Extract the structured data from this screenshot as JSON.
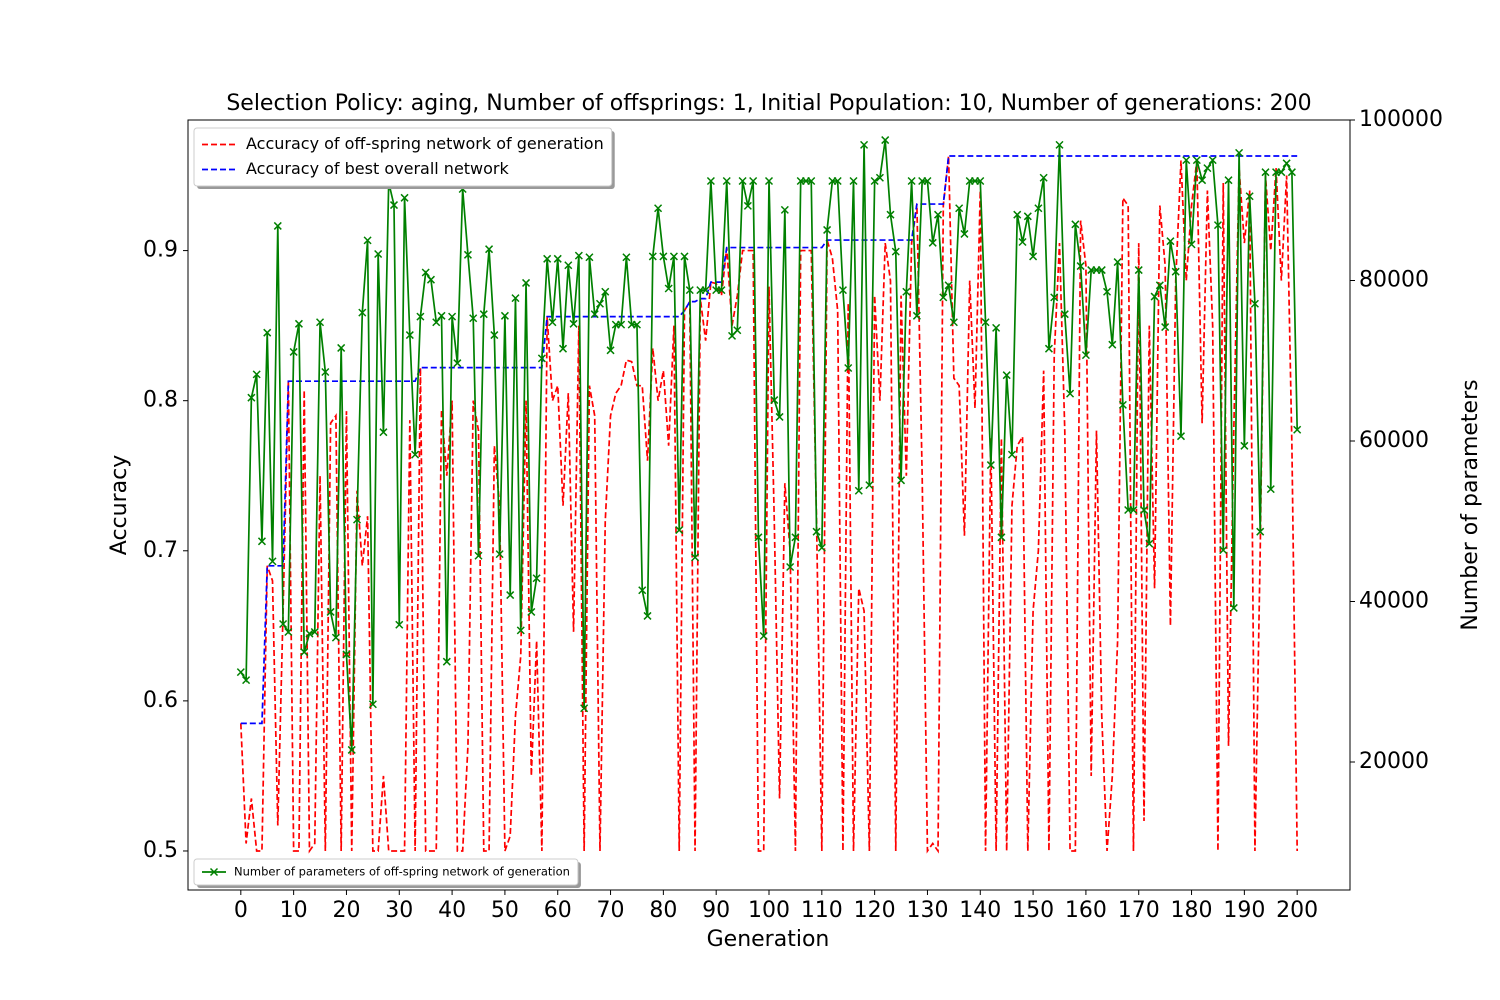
{
  "chart_data": {
    "type": "line",
    "title": "Selection Policy: aging, Number of offsprings: 1, Initial Population: 10, Number of generations: 200",
    "xlabel": "Generation",
    "ylabel": "Accuracy",
    "y2label": "Number of parameters",
    "xlim": [
      -10,
      210
    ],
    "ylim": [
      0.474,
      0.987
    ],
    "y2lim": [
      4050,
      100000
    ],
    "xticks": [
      0,
      10,
      20,
      30,
      40,
      50,
      60,
      70,
      80,
      90,
      100,
      110,
      120,
      130,
      140,
      150,
      160,
      170,
      180,
      190,
      200
    ],
    "yticks": [
      0.5,
      0.6,
      0.7,
      0.8,
      0.9
    ],
    "y2ticks": [
      20000,
      40000,
      60000,
      80000,
      100000
    ],
    "legend": "upper left",
    "legend2": "lower left",
    "grid": false,
    "x": [
      0,
      1,
      2,
      3,
      4,
      5,
      6,
      7,
      8,
      9,
      10,
      11,
      12,
      13,
      14,
      15,
      16,
      17,
      18,
      19,
      20,
      21,
      22,
      23,
      24,
      25,
      26,
      27,
      28,
      29,
      30,
      31,
      32,
      33,
      34,
      35,
      36,
      37,
      38,
      39,
      40,
      41,
      42,
      43,
      44,
      45,
      46,
      47,
      48,
      49,
      50,
      51,
      52,
      53,
      54,
      55,
      56,
      57,
      58,
      59,
      60,
      61,
      62,
      63,
      64,
      65,
      66,
      67,
      68,
      69,
      70,
      71,
      72,
      73,
      74,
      75,
      76,
      77,
      78,
      79,
      80,
      81,
      82,
      83,
      84,
      85,
      86,
      87,
      88,
      89,
      90,
      91,
      92,
      93,
      94,
      95,
      96,
      97,
      98,
      99,
      100,
      101,
      102,
      103,
      104,
      105,
      106,
      107,
      108,
      109,
      110,
      111,
      112,
      113,
      114,
      115,
      116,
      117,
      118,
      119,
      120,
      121,
      122,
      123,
      124,
      125,
      126,
      127,
      128,
      129,
      130,
      131,
      132,
      133,
      134,
      135,
      136,
      137,
      138,
      139,
      140,
      141,
      142,
      143,
      144,
      145,
      146,
      147,
      148,
      149,
      150,
      151,
      152,
      153,
      154,
      155,
      156,
      157,
      158,
      159,
      160,
      161,
      162,
      163,
      164,
      165,
      166,
      167,
      168,
      169,
      170,
      171,
      172,
      173,
      174,
      175,
      176,
      177,
      178,
      179,
      180,
      181,
      182,
      183,
      184,
      185,
      186,
      187,
      188,
      189,
      190,
      191,
      192,
      193,
      194,
      195,
      196,
      197,
      198,
      199,
      200
    ],
    "series": [
      {
        "name": "Accuracy of off-spring network of generation",
        "color": "#ff0000",
        "linestyle": "dashed",
        "axis": "y",
        "values": [
          0.585,
          0.505,
          0.535,
          0.5,
          0.5,
          0.69,
          0.68,
          0.517,
          0.66,
          0.813,
          0.5,
          0.5,
          0.807,
          0.5,
          0.505,
          0.75,
          0.5,
          0.785,
          0.79,
          0.5,
          0.793,
          0.5,
          0.74,
          0.69,
          0.723,
          0.5,
          0.5,
          0.55,
          0.5,
          0.5,
          0.5,
          0.5,
          0.787,
          0.5,
          0.822,
          0.5,
          0.5,
          0.5,
          0.794,
          0.75,
          0.8,
          0.5,
          0.5,
          0.57,
          0.8,
          0.78,
          0.5,
          0.5,
          0.77,
          0.73,
          0.5,
          0.51,
          0.59,
          0.63,
          0.8,
          0.55,
          0.64,
          0.5,
          0.856,
          0.8,
          0.81,
          0.73,
          0.805,
          0.646,
          0.85,
          0.5,
          0.81,
          0.79,
          0.5,
          0.72,
          0.79,
          0.805,
          0.81,
          0.827,
          0.826,
          0.81,
          0.81,
          0.76,
          0.835,
          0.8,
          0.82,
          0.77,
          0.85,
          0.5,
          0.86,
          0.866,
          0.5,
          0.868,
          0.84,
          0.879,
          0.878,
          0.87,
          0.902,
          0.85,
          0.87,
          0.9,
          0.9,
          0.9,
          0.5,
          0.5,
          0.876,
          0.72,
          0.535,
          0.745,
          0.7,
          0.5,
          0.9,
          0.9,
          0.9,
          0.72,
          0.5,
          0.907,
          0.895,
          0.86,
          0.5,
          0.865,
          0.5,
          0.675,
          0.66,
          0.5,
          0.87,
          0.8,
          0.905,
          0.88,
          0.5,
          0.87,
          0.75,
          0.905,
          0.931,
          0.75,
          0.5,
          0.505,
          0.5,
          0.93,
          0.963,
          0.815,
          0.81,
          0.71,
          0.88,
          0.795,
          0.94,
          0.5,
          0.775,
          0.5,
          0.775,
          0.5,
          0.73,
          0.77,
          0.776,
          0.5,
          0.66,
          0.7,
          0.82,
          0.5,
          0.83,
          0.905,
          0.78,
          0.5,
          0.5,
          0.92,
          0.89,
          0.55,
          0.78,
          0.59,
          0.5,
          0.55,
          0.64,
          0.935,
          0.93,
          0.5,
          0.905,
          0.52,
          0.85,
          0.675,
          0.93,
          0.89,
          0.65,
          0.88,
          0.96,
          0.88,
          0.93,
          0.96,
          0.785,
          0.94,
          0.85,
          0.5,
          0.945,
          0.57,
          0.78,
          0.955,
          0.905,
          0.94,
          0.5,
          0.7,
          0.95,
          0.9,
          0.955,
          0.88,
          0.95,
          0.77,
          0.5
        ]
      },
      {
        "name": "Accuracy of best overall network",
        "color": "#0000ff",
        "linestyle": "dashed",
        "axis": "y",
        "values": [
          0.585,
          0.585,
          0.585,
          0.585,
          0.585,
          0.69,
          0.69,
          0.69,
          0.69,
          0.813,
          0.813,
          0.813,
          0.813,
          0.813,
          0.813,
          0.813,
          0.813,
          0.813,
          0.813,
          0.813,
          0.813,
          0.813,
          0.813,
          0.813,
          0.813,
          0.813,
          0.813,
          0.813,
          0.813,
          0.813,
          0.813,
          0.813,
          0.813,
          0.813,
          0.822,
          0.822,
          0.822,
          0.822,
          0.822,
          0.822,
          0.822,
          0.822,
          0.822,
          0.822,
          0.822,
          0.822,
          0.822,
          0.822,
          0.822,
          0.822,
          0.822,
          0.822,
          0.822,
          0.822,
          0.822,
          0.822,
          0.822,
          0.822,
          0.856,
          0.856,
          0.856,
          0.856,
          0.856,
          0.856,
          0.856,
          0.856,
          0.856,
          0.856,
          0.856,
          0.856,
          0.856,
          0.856,
          0.856,
          0.856,
          0.856,
          0.856,
          0.856,
          0.856,
          0.856,
          0.856,
          0.856,
          0.856,
          0.856,
          0.856,
          0.86,
          0.866,
          0.866,
          0.868,
          0.868,
          0.879,
          0.879,
          0.879,
          0.902,
          0.902,
          0.902,
          0.902,
          0.902,
          0.902,
          0.902,
          0.902,
          0.902,
          0.902,
          0.902,
          0.902,
          0.902,
          0.902,
          0.902,
          0.902,
          0.902,
          0.902,
          0.902,
          0.907,
          0.907,
          0.907,
          0.907,
          0.907,
          0.907,
          0.907,
          0.907,
          0.907,
          0.907,
          0.907,
          0.907,
          0.907,
          0.907,
          0.907,
          0.907,
          0.907,
          0.931,
          0.931,
          0.931,
          0.931,
          0.931,
          0.931,
          0.963,
          0.963,
          0.963,
          0.963,
          0.963,
          0.963,
          0.963,
          0.963,
          0.963,
          0.963,
          0.963,
          0.963,
          0.963,
          0.963,
          0.963,
          0.963,
          0.963,
          0.963,
          0.963,
          0.963,
          0.963,
          0.963,
          0.963,
          0.963,
          0.963,
          0.963,
          0.963,
          0.963,
          0.963,
          0.963,
          0.963,
          0.963,
          0.963,
          0.963,
          0.963,
          0.963,
          0.963,
          0.963,
          0.963,
          0.963,
          0.963,
          0.963,
          0.963,
          0.963,
          0.963,
          0.963,
          0.963,
          0.963,
          0.963,
          0.963,
          0.963,
          0.963,
          0.963,
          0.963,
          0.963,
          0.963,
          0.963,
          0.963,
          0.963,
          0.963,
          0.963,
          0.963,
          0.963,
          0.963,
          0.963,
          0.963,
          0.963
        ]
      },
      {
        "name": "Number of parameters of off-spring network of generation",
        "color": "#008000",
        "linestyle": "solid",
        "marker": "x",
        "axis": "y2",
        "values": [
          31200,
          30200,
          65400,
          68300,
          47500,
          73500,
          45000,
          86800,
          37200,
          36200,
          71100,
          74600,
          33700,
          36000,
          36200,
          74800,
          68600,
          38700,
          35500,
          71600,
          33400,
          21500,
          50200,
          76000,
          85000,
          27200,
          83300,
          61100,
          92200,
          89400,
          37100,
          90300,
          73200,
          58300,
          75500,
          81000,
          80100,
          74800,
          75600,
          32500,
          75500,
          69700,
          91400,
          83200,
          75300,
          45700,
          75800,
          83900,
          73200,
          45900,
          75600,
          40800,
          77800,
          36400,
          79700,
          38700,
          42900,
          70300,
          82700,
          74800,
          82700,
          71500,
          81900,
          74600,
          83100,
          26700,
          82900,
          75800,
          77100,
          78600,
          71300,
          74500,
          74500,
          82900,
          74500,
          74500,
          41400,
          38200,
          83000,
          89000,
          83000,
          79000,
          83000,
          48900,
          83000,
          78800,
          45500,
          78800,
          78800,
          92400,
          78800,
          78800,
          92400,
          73100,
          73800,
          92400,
          89300,
          92400,
          48000,
          35700,
          92400,
          65100,
          63000,
          88800,
          44300,
          48000,
          92400,
          92400,
          92400,
          48700,
          46700,
          86300,
          92400,
          92400,
          78800,
          69100,
          92400,
          53800,
          96900,
          54500,
          92400,
          92800,
          97500,
          88200,
          83600,
          55100,
          78600,
          92400,
          75600,
          92400,
          92400,
          84700,
          88200,
          77900,
          79400,
          74800,
          89000,
          85800,
          92400,
          92400,
          92400,
          74800,
          57000,
          74100,
          48000,
          68200,
          58300,
          88200,
          84800,
          88000,
          83000,
          89000,
          92800,
          71500,
          77900,
          96900,
          75800,
          65900,
          87000,
          81800,
          70700,
          81300,
          81300,
          81300,
          78600,
          72000,
          82300,
          64500,
          51400,
          51400,
          81300,
          51400,
          47200,
          78000,
          79400,
          74200,
          84900,
          81100,
          60600,
          95000,
          84500,
          95000,
          92500,
          94000,
          95000,
          86900,
          46400,
          92500,
          39200,
          95900,
          59400,
          90500,
          77100,
          48700,
          93500,
          54000,
          93500,
          93500,
          94600,
          93500,
          61400
        ]
      }
    ]
  }
}
